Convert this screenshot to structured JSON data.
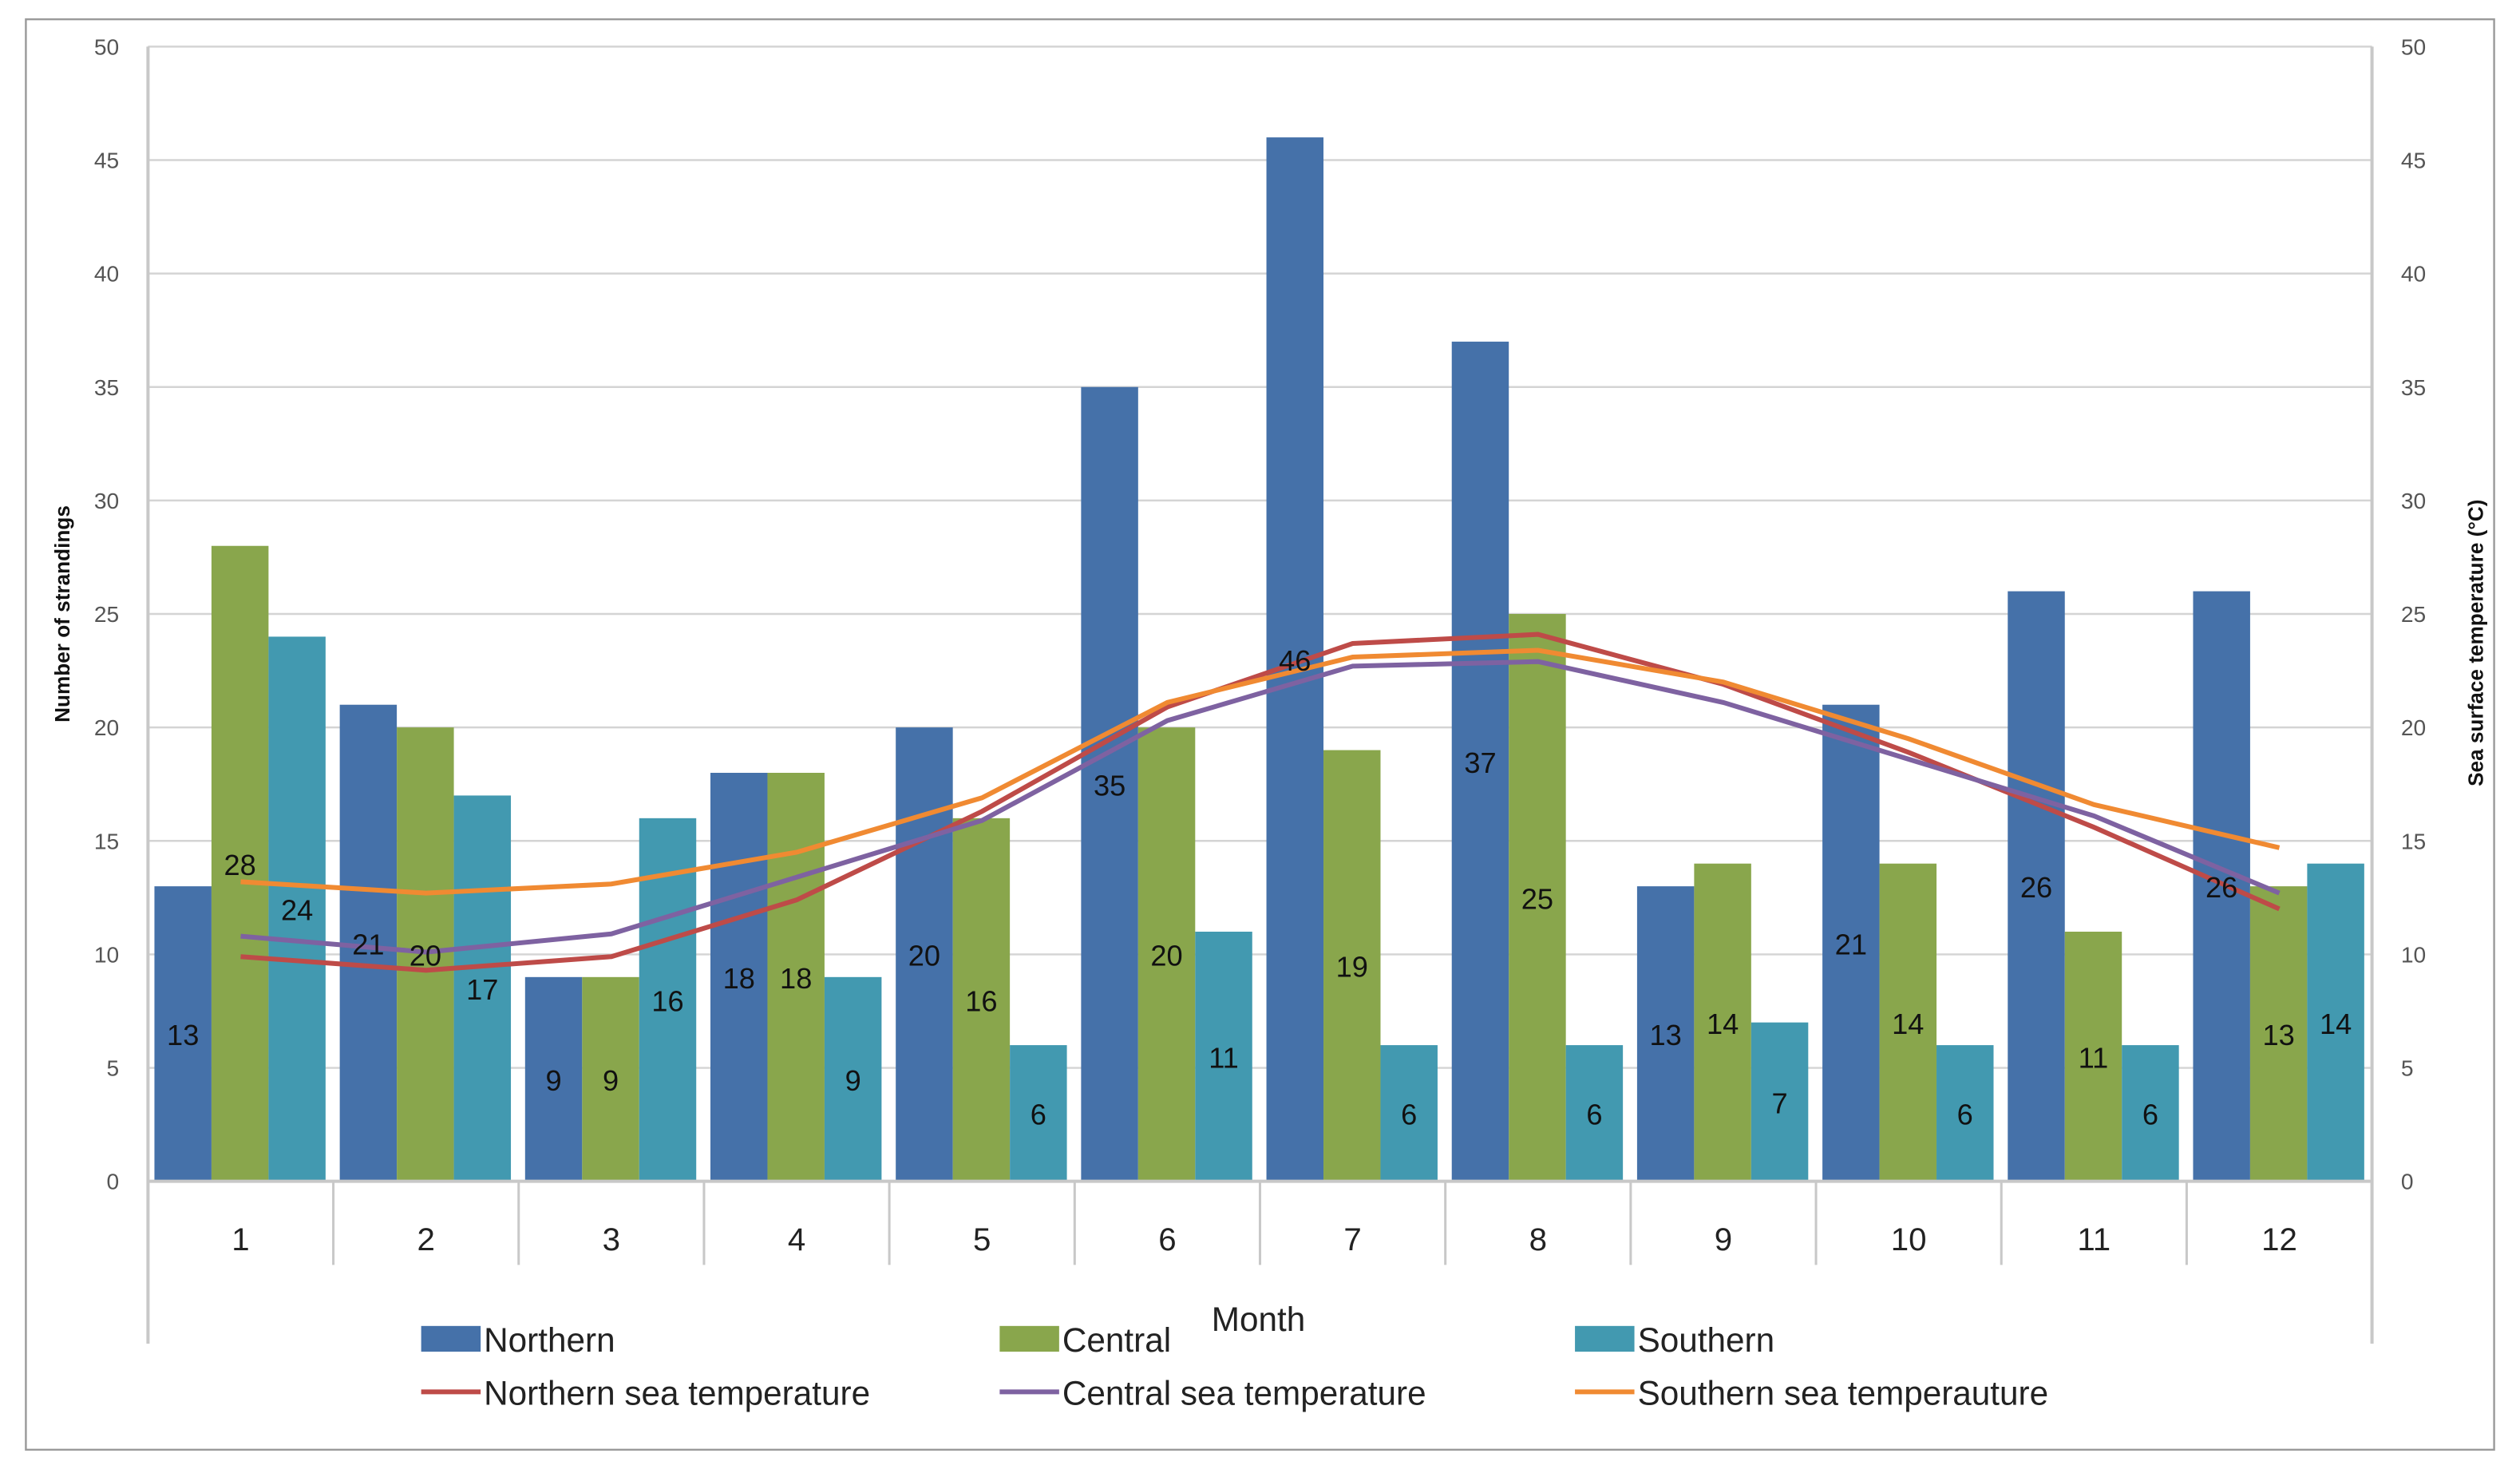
{
  "chart_data": {
    "type": "bar",
    "xlabel": "Month",
    "ylabel": "Number of strandings",
    "y2label": "Sea surface temperature (°C)",
    "ylim": [
      0,
      50
    ],
    "y2lim": [
      0,
      50
    ],
    "yticks": [
      0,
      5,
      10,
      15,
      20,
      25,
      30,
      35,
      40,
      45,
      50
    ],
    "grid": true,
    "legend_position": "bottom",
    "categories": [
      "1",
      "2",
      "3",
      "4",
      "5",
      "6",
      "7",
      "8",
      "9",
      "10",
      "11",
      "12"
    ],
    "series": [
      {
        "name": "Northern",
        "kind": "bar",
        "color": "#4571a9",
        "values": [
          13,
          21,
          9,
          18,
          20,
          35,
          46,
          37,
          13,
          21,
          26,
          26
        ]
      },
      {
        "name": "Central",
        "kind": "bar",
        "color": "#89a64c",
        "values": [
          28,
          20,
          9,
          18,
          16,
          20,
          19,
          25,
          14,
          14,
          11,
          13
        ]
      },
      {
        "name": "Southern",
        "kind": "bar",
        "color": "#4299b0",
        "values": [
          24,
          17,
          16,
          9,
          6,
          11,
          6,
          6,
          7,
          6,
          6,
          14
        ]
      },
      {
        "name": "Northern sea temperature",
        "kind": "line",
        "color": "#be4b48",
        "values": [
          9.9,
          9.3,
          9.9,
          12.4,
          16.3,
          20.9,
          23.7,
          24.1,
          21.9,
          18.9,
          15.6,
          12.0
        ]
      },
      {
        "name": "Central sea temperature",
        "kind": "line",
        "color": "#7e62a1",
        "values": [
          10.8,
          10.1,
          10.9,
          13.4,
          15.9,
          20.3,
          22.7,
          22.9,
          21.1,
          18.6,
          16.1,
          12.7
        ]
      },
      {
        "name": "Southern sea temperauture",
        "kind": "line",
        "color": "#f08a32",
        "values": [
          13.2,
          12.7,
          13.1,
          14.5,
          16.9,
          21.1,
          23.1,
          23.4,
          22.0,
          19.5,
          16.6,
          14.7
        ]
      }
    ]
  }
}
